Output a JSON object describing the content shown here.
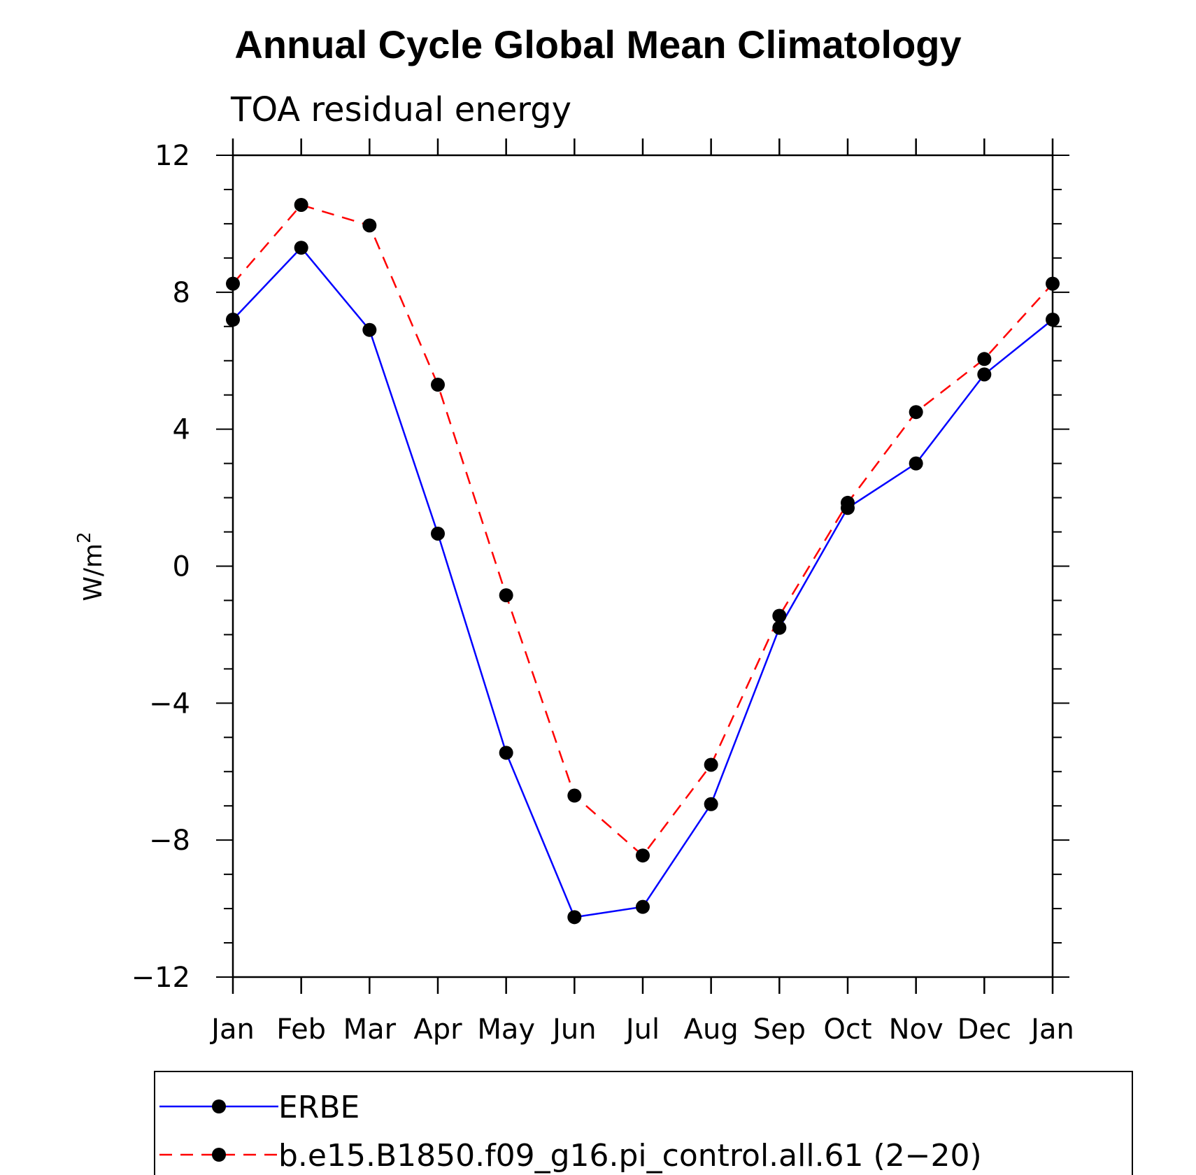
{
  "chart_data": {
    "type": "line",
    "title": "Annual Cycle Global Mean Climatology",
    "subtitle": "TOA residual energy",
    "ylabel": "W/m",
    "ylabel_superscript": "2",
    "xlabel": "",
    "categories": [
      "Jan",
      "Feb",
      "Mar",
      "Apr",
      "May",
      "Jun",
      "Jul",
      "Aug",
      "Sep",
      "Oct",
      "Nov",
      "Dec",
      "Jan"
    ],
    "ylim": [
      -12,
      12
    ],
    "yticks": [
      -12,
      -8,
      -4,
      0,
      4,
      8,
      12
    ],
    "ytick_labels": [
      "−12",
      "−8",
      "−4",
      "0",
      "4",
      "8",
      "12"
    ],
    "minor_y_step": 1,
    "grid": false,
    "legend_position": "bottom",
    "series": [
      {
        "name": "ERBE",
        "color": "#0000ff",
        "dash": "solid",
        "marker": "filled-circle",
        "values": [
          7.2,
          9.3,
          6.9,
          0.95,
          -5.45,
          -10.25,
          -9.95,
          -6.95,
          -1.8,
          1.7,
          3.0,
          5.6,
          7.2
        ]
      },
      {
        "name": "b.e15.B1850.f09_g16.pi_control.all.61 (2−20)",
        "color": "#ff0000",
        "dash": "dashed",
        "marker": "filled-circle",
        "values": [
          8.25,
          10.55,
          9.95,
          5.3,
          -0.85,
          -6.7,
          -8.45,
          -5.8,
          -1.45,
          1.85,
          4.5,
          6.05,
          8.25
        ]
      }
    ]
  }
}
